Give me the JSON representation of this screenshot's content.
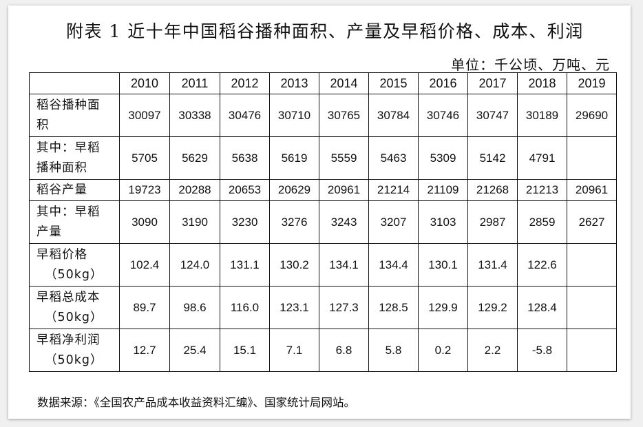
{
  "title": "附表 1  近十年中国稻谷播种面积、产量及早稻价格、成本、利润",
  "unit": "单位：千公顷、万吨、元",
  "years": [
    "2010",
    "2011",
    "2012",
    "2013",
    "2014",
    "2015",
    "2016",
    "2017",
    "2018",
    "2019"
  ],
  "rows": [
    {
      "label": [
        "稻谷播种面",
        "积"
      ],
      "values": [
        "30097",
        "30338",
        "30476",
        "30710",
        "30765",
        "30784",
        "30746",
        "30747",
        "30189",
        "29690"
      ]
    },
    {
      "label": [
        "其中：早稻",
        "播种面积"
      ],
      "values": [
        "5705",
        "5629",
        "5638",
        "5619",
        "5559",
        "5463",
        "5309",
        "5142",
        "4791",
        ""
      ]
    },
    {
      "label": [
        "稻谷产量"
      ],
      "values": [
        "19723",
        "20288",
        "20653",
        "20629",
        "20961",
        "21214",
        "21109",
        "21268",
        "21213",
        "20961"
      ]
    },
    {
      "label": [
        "其中：早稻",
        "产量"
      ],
      "values": [
        "3090",
        "3190",
        "3230",
        "3276",
        "3243",
        "3207",
        "3103",
        "2987",
        "2859",
        "2627"
      ]
    },
    {
      "label": [
        "早稻价格",
        "（50kg）"
      ],
      "values": [
        "102.4",
        "124.0",
        "131.1",
        "130.2",
        "134.1",
        "134.4",
        "130.1",
        "131.4",
        "122.6",
        ""
      ]
    },
    {
      "label": [
        "早稻总成本",
        "（50kg）"
      ],
      "values": [
        "89.7",
        "98.6",
        "116.0",
        "123.1",
        "127.3",
        "128.5",
        "129.9",
        "129.2",
        "128.4",
        ""
      ]
    },
    {
      "label": [
        "早稻净利润",
        "（50kg）"
      ],
      "values": [
        "12.7",
        "25.4",
        "15.1",
        "7.1",
        "6.8",
        "5.8",
        "0.2",
        "2.2",
        "-5.8",
        ""
      ]
    }
  ],
  "source": "数据来源：《全国农产品成本收益资料汇编》、国家统计局网站。"
}
